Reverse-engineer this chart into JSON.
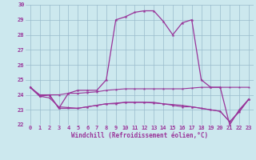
{
  "title": "",
  "xlabel": "Windchill (Refroidissement éolien,°C)",
  "bg_color": "#cce8ee",
  "grid_color": "#99bbcc",
  "line_color": "#993399",
  "ylim": [
    22,
    30
  ],
  "xlim": [
    -0.5,
    23.5
  ],
  "yticks": [
    22,
    23,
    24,
    25,
    26,
    27,
    28,
    29,
    30
  ],
  "xticks": [
    0,
    1,
    2,
    3,
    4,
    5,
    6,
    7,
    8,
    9,
    10,
    11,
    12,
    13,
    14,
    15,
    16,
    17,
    18,
    19,
    20,
    21,
    22,
    23
  ],
  "series": [
    [
      24.5,
      23.9,
      24.0,
      23.1,
      24.1,
      24.3,
      24.3,
      24.3,
      25.0,
      29.0,
      29.2,
      29.5,
      29.6,
      29.6,
      28.9,
      28.0,
      28.8,
      29.0,
      25.0,
      24.5,
      24.5,
      22.0,
      23.0,
      23.7
    ],
    [
      24.5,
      24.0,
      24.0,
      24.0,
      24.1,
      24.1,
      24.15,
      24.2,
      24.3,
      24.35,
      24.4,
      24.4,
      24.4,
      24.4,
      24.4,
      24.4,
      24.4,
      24.45,
      24.5,
      24.5,
      24.5,
      24.5,
      24.5,
      24.5
    ],
    [
      24.5,
      23.9,
      23.8,
      23.2,
      23.15,
      23.1,
      23.2,
      23.3,
      23.4,
      23.45,
      23.5,
      23.5,
      23.5,
      23.45,
      23.4,
      23.35,
      23.3,
      23.2,
      23.1,
      23.0,
      22.9,
      22.2,
      22.85,
      23.7
    ],
    [
      24.5,
      23.9,
      24.0,
      23.1,
      23.1,
      23.1,
      23.2,
      23.3,
      23.4,
      23.4,
      23.5,
      23.5,
      23.5,
      23.5,
      23.4,
      23.3,
      23.2,
      23.2,
      23.1,
      23.0,
      22.9,
      22.2,
      22.9,
      23.7
    ]
  ],
  "marker_sizes": [
    3,
    2.5,
    2.5,
    2.5
  ],
  "linewidths": [
    0.9,
    0.8,
    0.8,
    0.8
  ],
  "xlabel_fontsize": 5.5,
  "tick_fontsize": 5.0
}
